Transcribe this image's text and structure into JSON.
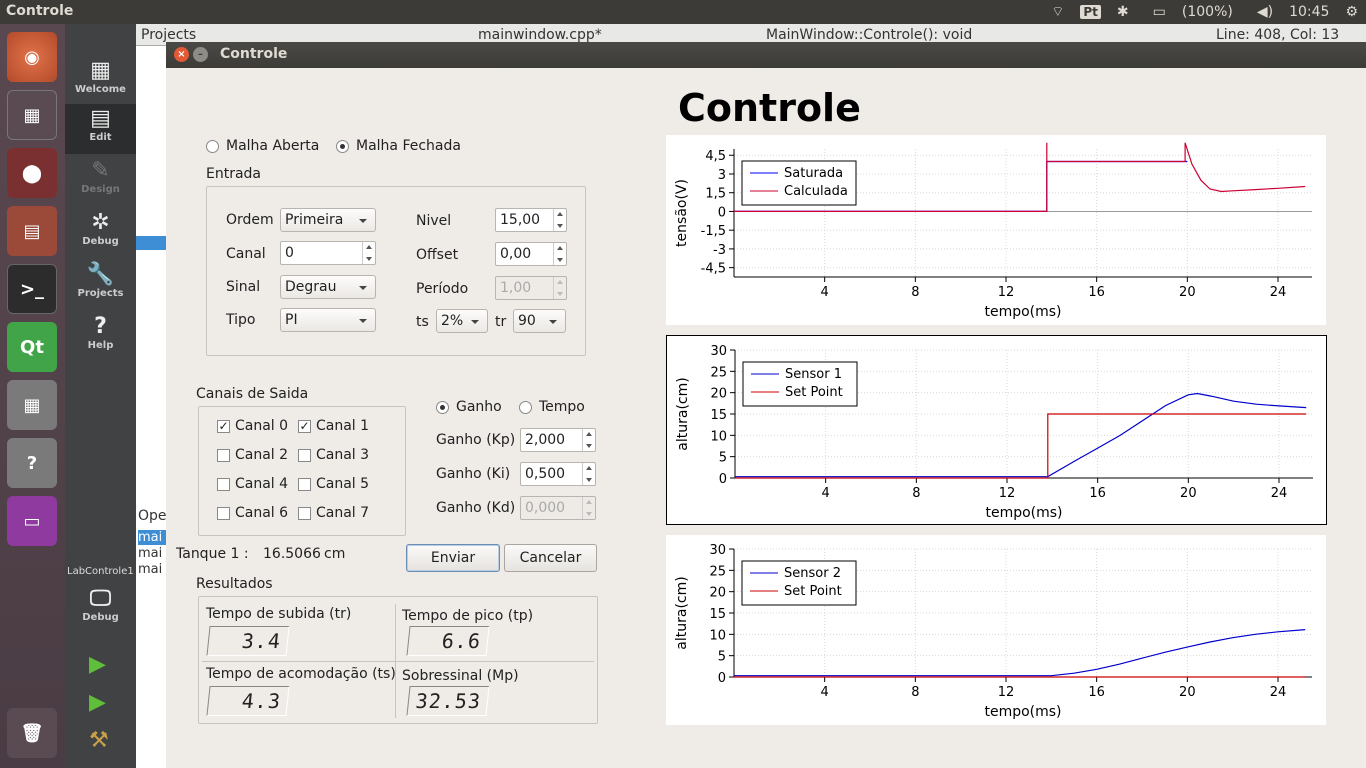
{
  "topbar": {
    "app_title": "Controle",
    "keyboard": "Pt",
    "battery": "(100%)",
    "clock": "10:45"
  },
  "qtcreator": {
    "modes": [
      {
        "label": "Welcome",
        "icon": "grid-icon"
      },
      {
        "label": "Edit",
        "icon": "edit-icon"
      },
      {
        "label": "Design",
        "icon": "pen-icon"
      },
      {
        "label": "Debug",
        "icon": "bug-icon"
      },
      {
        "label": "Projects",
        "icon": "wrench-icon"
      },
      {
        "label": "Help",
        "icon": "help-icon"
      }
    ],
    "kit": "LabControle1",
    "kit_mode": "Debug",
    "projects_label": "Projects",
    "file_tab": "mainwindow.cpp*",
    "function_tab": "MainWindow::Controle(): void",
    "line_col": "Line: 408, Col: 13",
    "open_docs_label": "Ope",
    "open_docs": [
      "mai",
      "mai",
      "mai"
    ]
  },
  "window": {
    "title": "Controle",
    "heading": "Controle"
  },
  "loop": {
    "open_label": "Malha Aberta",
    "closed_label": "Malha Fechada",
    "selected": "closed"
  },
  "entrada": {
    "title": "Entrada",
    "ordem_label": "Ordem",
    "ordem_value": "Primeira",
    "canal_label": "Canal",
    "canal_value": "0",
    "sinal_label": "Sinal",
    "sinal_value": "Degrau",
    "tipo_label": "Tipo",
    "tipo_value": "PI",
    "nivel_label": "Nivel",
    "nivel_value": "15,00",
    "offset_label": "Offset",
    "offset_value": "0,00",
    "periodo_label": "Período",
    "periodo_value": "1,00",
    "ts_label": "ts",
    "ts_value": "2%",
    "tr_label": "tr",
    "tr_value": "90"
  },
  "canais": {
    "title": "Canais de Saida",
    "items": [
      {
        "label": "Canal 0",
        "checked": true
      },
      {
        "label": "Canal 1",
        "checked": true
      },
      {
        "label": "Canal 2",
        "checked": false
      },
      {
        "label": "Canal 3",
        "checked": false
      },
      {
        "label": "Canal 4",
        "checked": false
      },
      {
        "label": "Canal 5",
        "checked": false
      },
      {
        "label": "Canal 6",
        "checked": false
      },
      {
        "label": "Canal 7",
        "checked": false
      }
    ]
  },
  "ganho": {
    "mode_ganho": "Ganho",
    "mode_tempo": "Tempo",
    "selected": "ganho",
    "kp_label": "Ganho (Kp)",
    "kp_value": "2,000",
    "ki_label": "Ganho (Ki)",
    "ki_value": "0,500",
    "kd_label": "Ganho (Kd)",
    "kd_value": "0,000"
  },
  "tanque": {
    "label": "Tanque 1 :",
    "value": "16.5066",
    "unit": "cm"
  },
  "buttons": {
    "enviar": "Enviar",
    "cancelar": "Cancelar"
  },
  "resultados": {
    "title": "Resultados",
    "tr_label": "Tempo de subida (tr)",
    "tr_value": "3.4",
    "tp_label": "Tempo de pico (tp)",
    "tp_value": "6.6",
    "ts_label": "Tempo de acomodação (ts)",
    "ts_value": "4.3",
    "mp_label": "Sobressinal (Mp)",
    "mp_value": "32.53"
  },
  "chart_data": [
    {
      "type": "line",
      "xlabel": "tempo(ms)",
      "ylabel": "tensão(V)",
      "xlim": [
        0,
        25.5
      ],
      "ylim": [
        -5.25,
        5
      ],
      "xticks": [
        4,
        8,
        12,
        16,
        20,
        24
      ],
      "yticks": [
        4.5,
        3,
        1.5,
        0,
        -1.5,
        -3,
        -4.5
      ],
      "ytick_labels": [
        "4,5",
        "3",
        "1,5",
        "0",
        "-1,5",
        "-3",
        "-4,5"
      ],
      "grid": true,
      "legend": "top-left",
      "series": [
        {
          "name": "Saturada",
          "color": "#0000ff",
          "x": [
            0,
            13.8,
            13.8,
            14.0,
            20.0
          ],
          "y": [
            0,
            0,
            4.0,
            4.0,
            4.0
          ]
        },
        {
          "name": "Calculada",
          "color": "#cc0033",
          "x": [
            0,
            13.8,
            13.8,
            13.8,
            14.0,
            19.9,
            19.9,
            20.2,
            20.6,
            21.0,
            21.5,
            22.0,
            23.0,
            24.0,
            25.2
          ],
          "y": [
            0,
            0,
            5.5,
            4.0,
            4.0,
            4.0,
            5.5,
            3.8,
            2.5,
            1.8,
            1.6,
            1.65,
            1.75,
            1.85,
            2.0
          ]
        }
      ]
    },
    {
      "type": "line",
      "xlabel": "tempo(ms)",
      "ylabel": "altura(cm)",
      "xlim": [
        0,
        25.5
      ],
      "ylim": [
        0,
        30
      ],
      "xticks": [
        4,
        8,
        12,
        16,
        20,
        24
      ],
      "yticks": [
        0,
        5,
        10,
        15,
        20,
        25,
        30
      ],
      "grid": true,
      "legend": "top-left",
      "series": [
        {
          "name": "Sensor 1",
          "color": "#0000cc",
          "x": [
            0,
            13.8,
            15,
            16,
            17,
            18,
            19,
            20,
            20.4,
            21,
            22,
            23,
            24,
            25.2
          ],
          "y": [
            0.3,
            0.3,
            4,
            7,
            10,
            13.5,
            17,
            19.5,
            19.8,
            19.2,
            18,
            17.3,
            16.9,
            16.5
          ]
        },
        {
          "name": "Set Point",
          "color": "#cc0000",
          "x": [
            0,
            13.8,
            13.8,
            25.2
          ],
          "y": [
            0,
            0,
            15,
            15
          ]
        }
      ]
    },
    {
      "type": "line",
      "xlabel": "tempo(ms)",
      "ylabel": "altura(cm)",
      "xlim": [
        0,
        25.5
      ],
      "ylim": [
        0,
        30
      ],
      "xticks": [
        4,
        8,
        12,
        16,
        20,
        24
      ],
      "yticks": [
        0,
        5,
        10,
        15,
        20,
        25,
        30
      ],
      "grid": true,
      "legend": "top-left",
      "series": [
        {
          "name": "Sensor 2",
          "color": "#0000cc",
          "x": [
            0,
            14,
            15,
            16,
            17,
            18,
            19,
            20,
            21,
            22,
            23,
            24,
            25.2
          ],
          "y": [
            0.3,
            0.3,
            0.9,
            1.8,
            3,
            4.4,
            5.8,
            7,
            8.2,
            9.2,
            10,
            10.6,
            11.1
          ]
        },
        {
          "name": "Set Point",
          "color": "#cc0000",
          "x": [
            0,
            25.2
          ],
          "y": [
            0,
            0
          ]
        }
      ]
    }
  ]
}
